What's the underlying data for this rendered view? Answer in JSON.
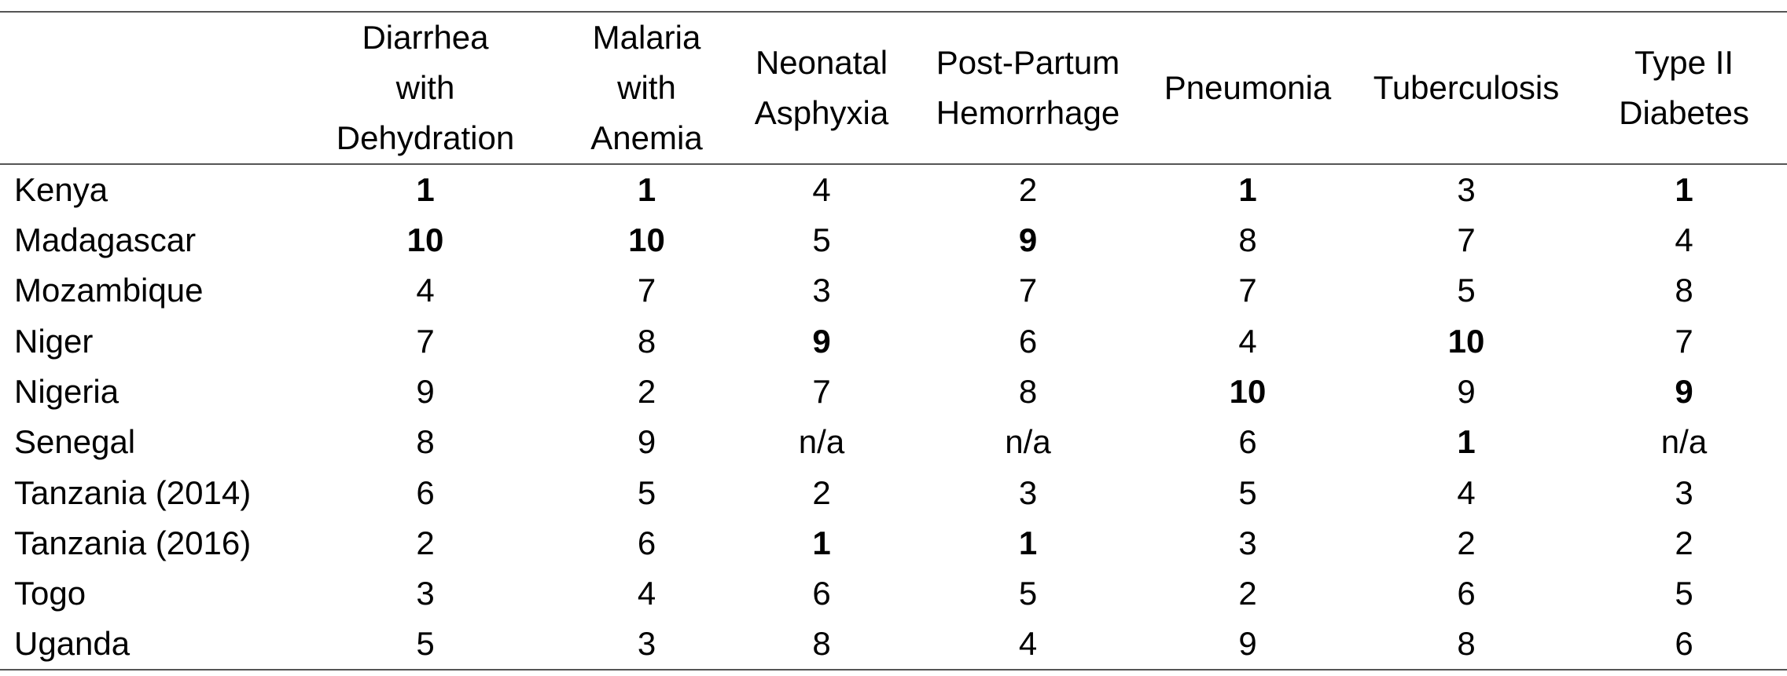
{
  "table": {
    "corner": "",
    "columns": [
      [
        "Diarrhea",
        "with",
        "Dehydration"
      ],
      [
        "Malaria",
        "with",
        "Anemia"
      ],
      [
        "Neonatal",
        "Asphyxia"
      ],
      [
        "Post-Partum",
        "Hemorrhage"
      ],
      [
        "Pneumonia"
      ],
      [
        "Tuberculosis"
      ],
      [
        "Type II",
        "Diabetes"
      ]
    ],
    "rows": [
      {
        "country": "Kenya",
        "values": [
          "1",
          "1",
          "4",
          "2",
          "1",
          "3",
          "1"
        ],
        "bold": [
          true,
          true,
          false,
          false,
          true,
          false,
          true
        ]
      },
      {
        "country": "Madagascar",
        "values": [
          "10",
          "10",
          "5",
          "9",
          "8",
          "7",
          "4"
        ],
        "bold": [
          true,
          true,
          false,
          true,
          false,
          false,
          false
        ]
      },
      {
        "country": "Mozambique",
        "values": [
          "4",
          "7",
          "3",
          "7",
          "7",
          "5",
          "8"
        ],
        "bold": [
          false,
          false,
          false,
          false,
          false,
          false,
          false
        ]
      },
      {
        "country": "Niger",
        "values": [
          "7",
          "8",
          "9",
          "6",
          "4",
          "10",
          "7"
        ],
        "bold": [
          false,
          false,
          true,
          false,
          false,
          true,
          false
        ]
      },
      {
        "country": "Nigeria",
        "values": [
          "9",
          "2",
          "7",
          "8",
          "10",
          "9",
          "9"
        ],
        "bold": [
          false,
          false,
          false,
          false,
          true,
          false,
          true
        ]
      },
      {
        "country": "Senegal",
        "values": [
          "8",
          "9",
          "n/a",
          "n/a",
          "6",
          "1",
          "n/a"
        ],
        "bold": [
          false,
          false,
          false,
          false,
          false,
          true,
          false
        ]
      },
      {
        "country": "Tanzania (2014)",
        "values": [
          "6",
          "5",
          "2",
          "3",
          "5",
          "4",
          "3"
        ],
        "bold": [
          false,
          false,
          false,
          false,
          false,
          false,
          false
        ]
      },
      {
        "country": "Tanzania (2016)",
        "values": [
          "2",
          "6",
          "1",
          "1",
          "3",
          "2",
          "2"
        ],
        "bold": [
          false,
          false,
          true,
          true,
          false,
          false,
          false
        ]
      },
      {
        "country": "Togo",
        "values": [
          "3",
          "4",
          "6",
          "5",
          "2",
          "6",
          "5"
        ],
        "bold": [
          false,
          false,
          false,
          false,
          false,
          false,
          false
        ]
      },
      {
        "country": "Uganda",
        "values": [
          "5",
          "3",
          "8",
          "4",
          "9",
          "8",
          "6"
        ],
        "bold": [
          false,
          false,
          false,
          false,
          false,
          false,
          false
        ]
      }
    ]
  }
}
